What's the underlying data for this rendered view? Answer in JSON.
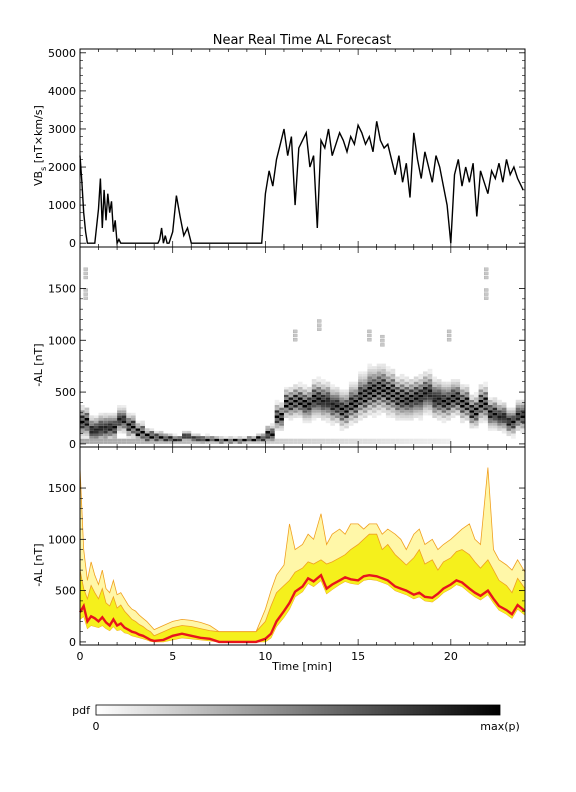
{
  "figure": {
    "title": "Near Real Time AL Forecast",
    "xlabel": "Time [min]",
    "colorbar": {
      "label": "pdf",
      "min_label": "0",
      "max_label": "max(p)"
    }
  },
  "colors": {
    "line": "#000000",
    "median": "#e8141c",
    "band_outer": "#fff7a8",
    "band_inner": "#f5f01c",
    "band_edge": "#f0a020"
  },
  "chart_data": [
    {
      "type": "line",
      "name": "vbs",
      "ylabel_main": "VB",
      "ylabel_sub": "s",
      "ylabel_rest": " [nT×km/s]",
      "xlim": [
        0,
        24
      ],
      "ylim": [
        -100,
        5100
      ],
      "xticks": [
        0,
        5,
        10,
        15,
        20
      ],
      "yticks": [
        0,
        1000,
        2000,
        3000,
        4000,
        5000
      ],
      "x": [
        0,
        0.1,
        0.2,
        0.3,
        0.4,
        0.5,
        0.6,
        0.8,
        1.0,
        1.1,
        1.2,
        1.3,
        1.4,
        1.5,
        1.6,
        1.7,
        1.8,
        1.9,
        2.0,
        2.1,
        2.2,
        2.3,
        2.5,
        3.0,
        3.5,
        4.0,
        4.2,
        4.3,
        4.4,
        4.5,
        4.6,
        4.7,
        4.8,
        5.0,
        5.2,
        5.4,
        5.6,
        5.8,
        6.0,
        6.5,
        7.0,
        7.5,
        8.0,
        8.5,
        9.0,
        9.4,
        9.6,
        9.8,
        10.0,
        10.2,
        10.4,
        10.6,
        10.8,
        11.0,
        11.2,
        11.4,
        11.6,
        11.8,
        12.0,
        12.2,
        12.4,
        12.6,
        12.8,
        13.0,
        13.2,
        13.4,
        13.6,
        13.8,
        14.0,
        14.2,
        14.4,
        14.6,
        14.8,
        15.0,
        15.2,
        15.4,
        15.6,
        15.8,
        16.0,
        16.2,
        16.4,
        16.6,
        16.8,
        17.0,
        17.2,
        17.4,
        17.6,
        17.8,
        18.0,
        18.2,
        18.4,
        18.6,
        18.8,
        19.0,
        19.2,
        19.4,
        19.6,
        19.8,
        20.0,
        20.2,
        20.4,
        20.6,
        20.8,
        21.0,
        21.2,
        21.4,
        21.6,
        21.8,
        22.0,
        22.2,
        22.4,
        22.6,
        22.8,
        23.0,
        23.2,
        23.4,
        23.6,
        23.8,
        23.9
      ],
      "y": [
        2300,
        1600,
        800,
        300,
        0,
        0,
        0,
        0,
        900,
        1700,
        400,
        1400,
        600,
        1300,
        800,
        1100,
        300,
        600,
        0,
        100,
        0,
        0,
        0,
        0,
        0,
        0,
        0,
        100,
        400,
        0,
        200,
        0,
        0,
        300,
        1250,
        700,
        200,
        400,
        0,
        0,
        0,
        0,
        0,
        0,
        0,
        0,
        0,
        0,
        1300,
        1900,
        1500,
        2200,
        2600,
        3000,
        2300,
        2800,
        1000,
        2500,
        2700,
        2900,
        2000,
        2300,
        400,
        2700,
        2500,
        3000,
        2300,
        2600,
        2900,
        2700,
        2400,
        2800,
        2600,
        3100,
        2900,
        2600,
        2800,
        2400,
        3200,
        2700,
        2500,
        2600,
        2200,
        1800,
        2300,
        1600,
        2100,
        1200,
        2900,
        2200,
        1700,
        2400,
        2000,
        1600,
        2300,
        2000,
        1500,
        1000,
        0,
        1800,
        2200,
        1500,
        2000,
        1600,
        2100,
        700,
        1900,
        1600,
        1300,
        1900,
        1700,
        2100,
        1600,
        2200,
        1800,
        2000,
        1700,
        1500,
        1400
      ]
    },
    {
      "type": "heatmap",
      "name": "al-pdf",
      "ylabel": "-AL [nT]",
      "xlim": [
        0,
        24
      ],
      "ylim": [
        -30,
        1900
      ],
      "xticks": [
        0,
        5,
        10,
        15,
        20
      ],
      "yticks": [
        0,
        500,
        1000,
        1500
      ],
      "x": [
        0,
        0.5,
        1,
        1.5,
        2,
        2.5,
        3,
        3.5,
        4,
        4.5,
        5,
        5.5,
        6,
        6.5,
        7,
        7.5,
        8,
        8.5,
        9,
        9.5,
        10,
        10.5,
        11,
        11.5,
        12,
        12.5,
        13,
        13.5,
        14,
        14.5,
        15,
        15.5,
        16,
        16.5,
        17,
        17.5,
        18,
        18.5,
        19,
        19.5,
        20,
        20.5,
        21,
        21.5,
        22,
        22.5,
        23,
        23.5,
        24
      ],
      "peak": [
        200,
        120,
        140,
        150,
        220,
        160,
        100,
        60,
        50,
        40,
        30,
        60,
        40,
        30,
        30,
        20,
        20,
        20,
        30,
        40,
        80,
        250,
        380,
        400,
        370,
        420,
        400,
        360,
        320,
        380,
        450,
        500,
        520,
        480,
        430,
        420,
        440,
        480,
        420,
        400,
        430,
        380,
        300,
        380,
        280,
        250,
        200,
        260,
        230
      ],
      "spread": [
        180,
        160,
        170,
        160,
        150,
        140,
        120,
        90,
        70,
        60,
        50,
        60,
        50,
        50,
        40,
        40,
        40,
        40,
        40,
        60,
        110,
        160,
        180,
        190,
        200,
        220,
        220,
        210,
        220,
        230,
        260,
        280,
        280,
        270,
        250,
        240,
        240,
        240,
        230,
        220,
        210,
        210,
        190,
        210,
        180,
        170,
        160,
        180,
        170
      ],
      "isolated_peaks": [
        {
          "x": 0.2,
          "y": 1700
        },
        {
          "x": 0.2,
          "y": 1500
        },
        {
          "x": 15.5,
          "y": 1100
        },
        {
          "x": 16.2,
          "y": 1050
        },
        {
          "x": 21.8,
          "y": 1700
        },
        {
          "x": 21.8,
          "y": 1500
        },
        {
          "x": 11.5,
          "y": 1100
        },
        {
          "x": 12.8,
          "y": 1200
        },
        {
          "x": 19.8,
          "y": 1100
        }
      ]
    },
    {
      "type": "area",
      "name": "al-forecast",
      "ylabel": "-AL [nT]",
      "xlim": [
        0,
        24
      ],
      "ylim": [
        -30,
        1900
      ],
      "xticks": [
        0,
        5,
        10,
        15,
        20
      ],
      "yticks": [
        0,
        500,
        1000,
        1500
      ],
      "x": [
        0,
        0.2,
        0.4,
        0.6,
        0.8,
        1.0,
        1.2,
        1.4,
        1.6,
        1.8,
        2.0,
        2.2,
        2.4,
        2.6,
        2.8,
        3.0,
        3.2,
        3.4,
        3.6,
        3.8,
        4.0,
        4.5,
        5.0,
        5.5,
        6.0,
        6.5,
        7.0,
        7.5,
        8.0,
        8.5,
        9.0,
        9.5,
        10.0,
        10.3,
        10.6,
        11.0,
        11.3,
        11.6,
        12.0,
        12.3,
        12.6,
        13.0,
        13.3,
        13.6,
        14.0,
        14.3,
        14.6,
        15.0,
        15.3,
        15.6,
        16.0,
        16.3,
        16.6,
        17.0,
        17.3,
        17.6,
        18.0,
        18.3,
        18.6,
        19.0,
        19.3,
        19.6,
        20.0,
        20.3,
        20.6,
        21.0,
        21.3,
        21.6,
        22.0,
        22.3,
        22.6,
        23.0,
        23.3,
        23.6,
        24.0
      ],
      "median": [
        290,
        350,
        200,
        250,
        230,
        200,
        240,
        190,
        160,
        220,
        160,
        180,
        140,
        120,
        100,
        90,
        70,
        60,
        40,
        20,
        10,
        20,
        60,
        80,
        60,
        40,
        30,
        0,
        0,
        0,
        0,
        0,
        30,
        80,
        200,
        300,
        380,
        490,
        540,
        620,
        590,
        650,
        520,
        560,
        600,
        630,
        610,
        600,
        640,
        650,
        640,
        620,
        600,
        540,
        520,
        500,
        460,
        480,
        440,
        430,
        470,
        520,
        560,
        600,
        580,
        520,
        480,
        450,
        500,
        420,
        350,
        310,
        270,
        360,
        300
      ],
      "lower": [
        220,
        250,
        130,
        160,
        150,
        140,
        160,
        130,
        110,
        150,
        110,
        120,
        90,
        80,
        60,
        50,
        40,
        30,
        20,
        5,
        0,
        0,
        20,
        40,
        30,
        20,
        10,
        0,
        0,
        0,
        0,
        0,
        0,
        40,
        150,
        240,
        320,
        440,
        490,
        570,
        540,
        600,
        470,
        510,
        560,
        590,
        570,
        560,
        600,
        610,
        600,
        580,
        560,
        500,
        480,
        460,
        420,
        440,
        400,
        390,
        430,
        480,
        520,
        560,
        540,
        480,
        440,
        410,
        460,
        380,
        310,
        270,
        230,
        320,
        260
      ],
      "inner_upper": [
        700,
        520,
        420,
        550,
        480,
        420,
        520,
        380,
        350,
        440,
        330,
        360,
        300,
        260,
        220,
        200,
        170,
        150,
        120,
        100,
        60,
        100,
        140,
        160,
        150,
        130,
        110,
        100,
        100,
        100,
        100,
        100,
        200,
        350,
        480,
        550,
        600,
        680,
        720,
        780,
        760,
        800,
        760,
        780,
        820,
        850,
        900,
        950,
        1000,
        1050,
        1050,
        900,
        950,
        850,
        800,
        750,
        820,
        900,
        760,
        800,
        700,
        780,
        820,
        880,
        900,
        850,
        780,
        720,
        800,
        700,
        600,
        550,
        480,
        620,
        520
      ],
      "outer_upper": [
        1700,
        900,
        600,
        780,
        650,
        560,
        700,
        520,
        480,
        600,
        460,
        480,
        420,
        360,
        320,
        300,
        260,
        230,
        200,
        160,
        120,
        160,
        200,
        220,
        210,
        190,
        160,
        100,
        100,
        100,
        100,
        100,
        320,
        500,
        650,
        750,
        1150,
        900,
        950,
        1050,
        1000,
        1250,
        950,
        1050,
        1100,
        1050,
        1150,
        1150,
        1100,
        1150,
        1150,
        1050,
        1100,
        1050,
        1000,
        900,
        1050,
        1100,
        950,
        1000,
        900,
        950,
        1000,
        1050,
        1100,
        1150,
        1000,
        950,
        1700,
        900,
        800,
        750,
        700,
        800,
        680
      ]
    }
  ]
}
